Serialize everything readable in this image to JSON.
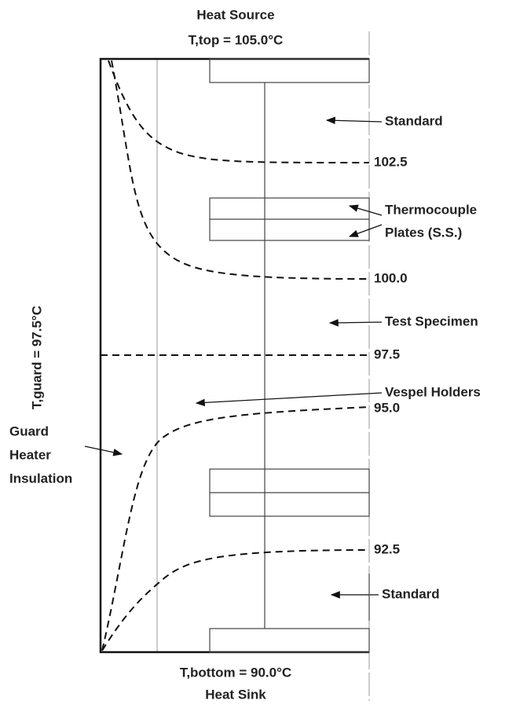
{
  "top": {
    "title": "Heat Source",
    "temperature": "T,top  =  105.0°C"
  },
  "bottom": {
    "temperature": "T,bottom  =  90.0°C",
    "title": "Heat Sink"
  },
  "guard_temperature": "T,guard  =  97.5°C",
  "labels": [
    "Standard",
    [
      "Thermocouple",
      "Plates (S.S.)"
    ],
    "Test Specimen",
    "Vespel Holders",
    [
      "Guard",
      "Heater",
      "Insulation"
    ],
    "Standard"
  ],
  "isotherms": [
    "102.5",
    "100.0",
    "97.5",
    "95.0",
    "92.5"
  ]
}
